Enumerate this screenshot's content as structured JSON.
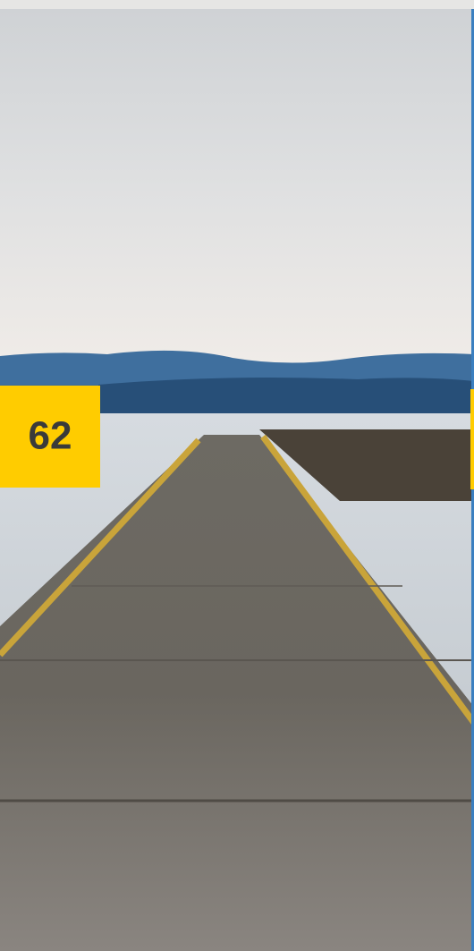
{
  "badge": {
    "text": "62"
  }
}
